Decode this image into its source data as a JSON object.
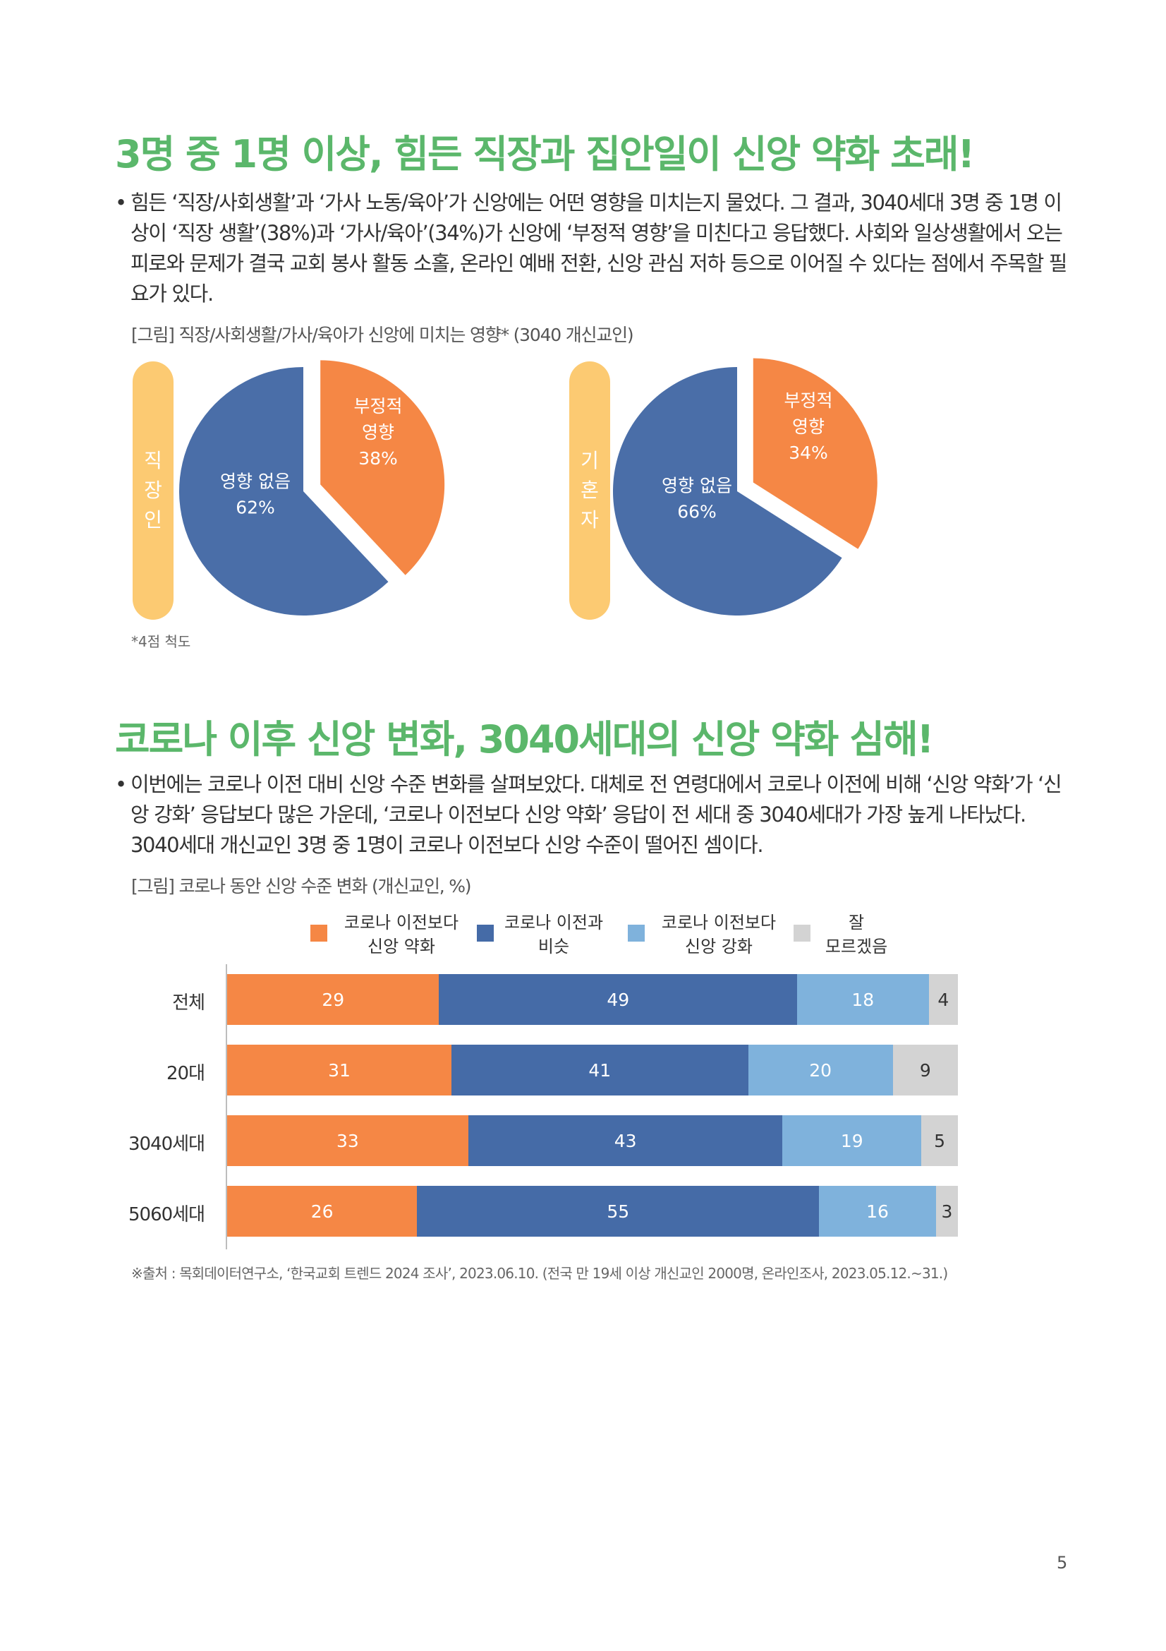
{
  "section1": {
    "title": "3명 중 1명 이상, 힘든 직장과 집안일이 신앙 약화 초래!",
    "bullet": "•",
    "paragraph": "힘든 ‘직장/사회생활’과 ‘가사 노동/육아’가 신앙에는 어떤 영향을 미치는지 물었다. 그 결과, 3040세대 3명 중 1명 이상이 ‘직장 생활’(38%)과 ‘가사/육아’(34%)가 신앙에 ‘부정적 영향’을 미친다고 응답했다. 사회와 일상생활에서 오는 피로와 문제가 결국 교회 봉사 활동 소홀, 온라인 예배 전환, 신앙 관심 저하 등으로 이어질 수 있다는 점에서 주목할 필요가 있다.",
    "figure_caption": "[그림] 직장/사회생활/가사/육아가 신앙에 미치는 영향* (3040 개신교인)",
    "note": "*4점 척도"
  },
  "section2": {
    "title": "코로나 이후 신앙 변화, 3040세대의 신앙 약화 심해!",
    "bullet": "•",
    "paragraph": "이번에는 코로나 이전 대비 신앙 수준 변화를 살펴보았다. 대체로 전 연령대에서 코로나 이전에 비해 ‘신앙 약화’가 ‘신앙 강화’ 응답보다 많은 가운데, ‘코로나 이전보다 신앙 약화’ 응답이 전 세대 중 3040세대가 가장 높게 나타났다. 3040세대 개신교인 3명 중 1명이 코로나 이전보다 신앙 수준이 떨어진 셈이다.",
    "figure_caption": "[그림] 코로나 동안 신앙 수준 변화 (개신교인, %)"
  },
  "chart_data": [
    {
      "type": "pie",
      "group_label": [
        "직",
        "장",
        "인"
      ],
      "slices": [
        {
          "label_lines": [
            "부정적",
            "영향",
            "38%"
          ],
          "value": 38,
          "color": "#f58745",
          "exploded": true
        },
        {
          "label_lines": [
            "영향 없음",
            "62%"
          ],
          "value": 62,
          "color": "#4a6ea8",
          "exploded": false
        }
      ]
    },
    {
      "type": "pie",
      "group_label": [
        "기",
        "혼",
        "자"
      ],
      "slices": [
        {
          "label_lines": [
            "부정적",
            "영향",
            "34%"
          ],
          "value": 34,
          "color": "#f58745",
          "exploded": true
        },
        {
          "label_lines": [
            "영향 없음",
            "66%"
          ],
          "value": 66,
          "color": "#4a6ea8",
          "exploded": false
        }
      ]
    },
    {
      "type": "bar",
      "orientation": "horizontal",
      "stacked": true,
      "categories": [
        "전체",
        "20대",
        "3040세대",
        "5060세대"
      ],
      "series": [
        {
          "name_lines": [
            "코로나 이전보다",
            "신앙 약화"
          ],
          "color": "#f58745",
          "values": [
            29,
            31,
            33,
            26
          ]
        },
        {
          "name_lines": [
            "코로나 이전과",
            "비슷"
          ],
          "color": "#456ba7",
          "values": [
            49,
            41,
            43,
            55
          ]
        },
        {
          "name_lines": [
            "코로나 이전보다",
            "신앙 강화"
          ],
          "color": "#7fb2dc",
          "values": [
            18,
            20,
            19,
            16
          ]
        },
        {
          "name_lines": [
            "잘",
            "모르겠음"
          ],
          "color": "#d3d3d3",
          "values": [
            4,
            9,
            5,
            3
          ]
        }
      ],
      "legend_position": "top"
    }
  ],
  "source": "※출처 : 목회데이터연구소, ‘한국교회 트렌드 2024 조사’, 2023.06.10. (전국 만 19세 이상 개신교인 2000명, 온라인조사, 2023.05.12.~31.)",
  "page_number": "5"
}
